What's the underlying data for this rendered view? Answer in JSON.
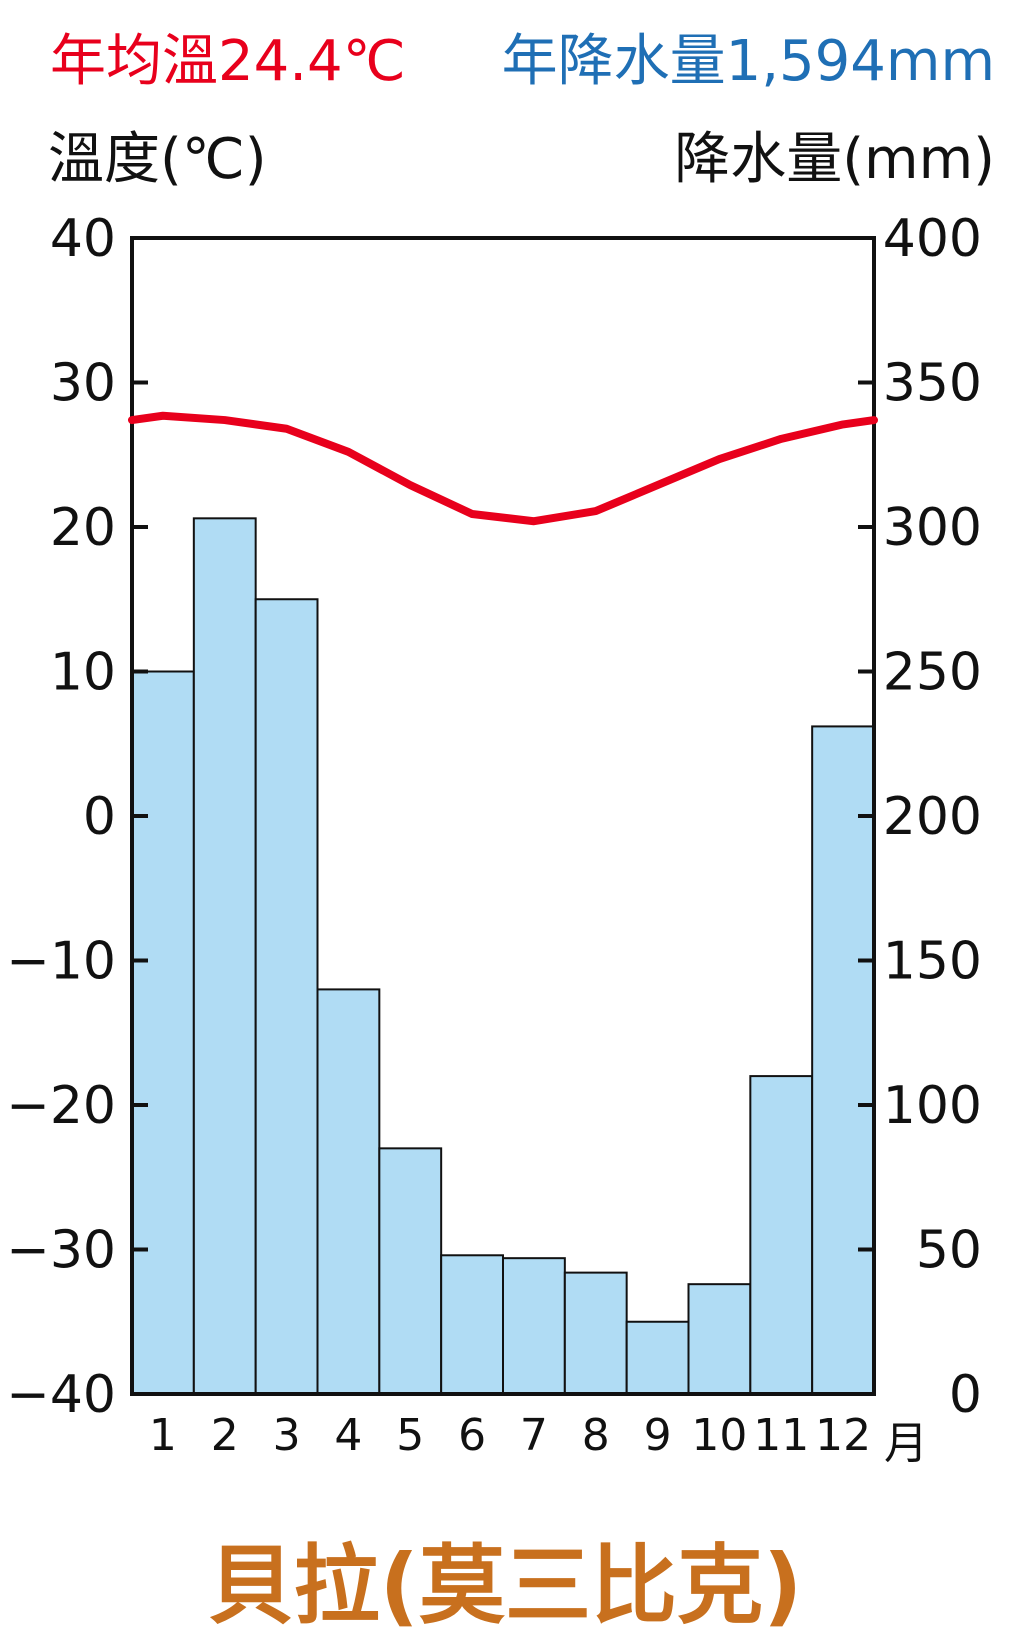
{
  "header": {
    "annual_temp": "年均溫24.4℃",
    "annual_precip": "年降水量1,594mm",
    "temp_axis_label": "溫度(℃)",
    "precip_axis_label": "降水量(mm)",
    "month_unit": "月",
    "station": "貝拉(莫三比克)"
  },
  "colors": {
    "temp_line": "#e8001c",
    "precip_bar": "#b0dcf4",
    "annual_temp_text": "#e8001c",
    "annual_precip_text": "#1f6fb5",
    "station_text": "#c8701e"
  },
  "chart_data": {
    "type": "bar+line",
    "categories": [
      "1",
      "2",
      "3",
      "4",
      "5",
      "6",
      "7",
      "8",
      "9",
      "10",
      "11",
      "12"
    ],
    "temperature": {
      "values": [
        27.7,
        27.4,
        26.8,
        25.2,
        22.9,
        20.9,
        20.4,
        21.1,
        22.9,
        24.7,
        26.1,
        27.1
      ],
      "ylim": [
        -40,
        40
      ],
      "ticks": [
        "40",
        "30",
        "20",
        "10",
        "0",
        "−10",
        "−20",
        "−30",
        "−40"
      ]
    },
    "precipitation": {
      "values": [
        250,
        303,
        275,
        140,
        85,
        48,
        47,
        42,
        25,
        38,
        110,
        231
      ],
      "ylim": [
        0,
        400
      ],
      "ticks": [
        "400",
        "350",
        "300",
        "250",
        "200",
        "150",
        "100",
        "50",
        "0"
      ]
    }
  }
}
